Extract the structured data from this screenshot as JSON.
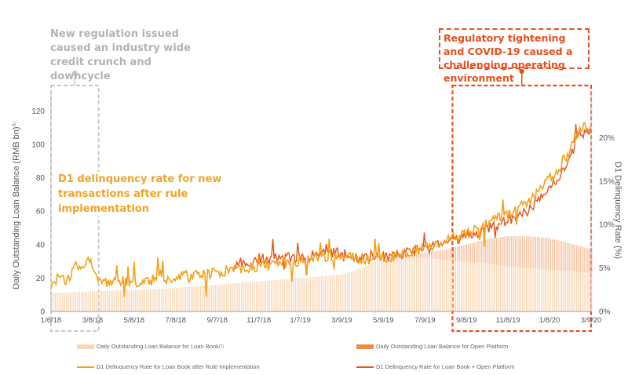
{
  "annotations": {
    "regulation": "New regulation issued caused an industry wide credit crunch and downcycle",
    "covid": "Regulatory tightening and COVID-19 caused a challenging operating environment",
    "d1_note": "D1 delinquency rate for new transactions after rule implementation"
  },
  "colors": {
    "loan_book_bar": "#f9d8b7",
    "open_platform_bar": "#f08a48",
    "d1_after_rule": "#f6a01a",
    "d1_combined": "#e5541c",
    "highlight_gray": "#c8c8c8",
    "highlight_red": "#e8501f"
  },
  "chart_data": {
    "type": "bar-line-combo",
    "title": "",
    "y_left_label": "Daily Outstanding Loan Balance (RMB bn)",
    "y_left_label_sup": "(1)",
    "y_right_label": "D1 Delinquency Rate (%)",
    "y_left_range": [
      0,
      130
    ],
    "y_left_ticks": [
      "0",
      "20",
      "40",
      "60",
      "80",
      "100",
      "120"
    ],
    "y_right_range": [
      0,
      0.25
    ],
    "y_right_ticks": [
      "0%",
      "5%",
      "10%",
      "15%",
      "20%"
    ],
    "x_tick_labels": [
      "1/6/18",
      "3/8/18",
      "5/8/18",
      "7/8/18",
      "9/7/18",
      "11/7/18",
      "1/7/19",
      "3/9/19",
      "5/9/19",
      "7/9/19",
      "9/8/19",
      "11/8/19",
      "1/8/20",
      "3/9/20"
    ],
    "x_range_months": [
      0,
      26.1
    ],
    "series": [
      {
        "name": "Daily Outstanding Loan Balance for Loan Book",
        "name_sup": "(1)",
        "type": "bar",
        "axis": "left",
        "points": [
          [
            0,
            11
          ],
          [
            2,
            12
          ],
          [
            4,
            13
          ],
          [
            6,
            14
          ],
          [
            8,
            16
          ],
          [
            10,
            18
          ],
          [
            12,
            20
          ],
          [
            13,
            21
          ],
          [
            14,
            22
          ],
          [
            15,
            26
          ],
          [
            16,
            31
          ],
          [
            17,
            32
          ],
          [
            18,
            32
          ],
          [
            19,
            31
          ],
          [
            20,
            30
          ],
          [
            21,
            29
          ],
          [
            22,
            27
          ],
          [
            23,
            26
          ],
          [
            24,
            25
          ],
          [
            25,
            24
          ],
          [
            26.1,
            23
          ]
        ]
      },
      {
        "name": "Daily Outstanding Loan Balance for Open Platform",
        "type": "bar",
        "axis": "left",
        "stacked_on": "Daily Outstanding Loan Balance for Loan Book",
        "points": [
          [
            0,
            0
          ],
          [
            15,
            0
          ],
          [
            16,
            0.5
          ],
          [
            17,
            1
          ],
          [
            18,
            3
          ],
          [
            19,
            6
          ],
          [
            20,
            10
          ],
          [
            21,
            14
          ],
          [
            22,
            18
          ],
          [
            23,
            19
          ],
          [
            24,
            19
          ],
          [
            25,
            17
          ],
          [
            26.1,
            14
          ]
        ]
      },
      {
        "name": "D1 Delinquency Rate for Loan Book after Rule Implementation",
        "type": "line",
        "axis": "right",
        "points": [
          [
            0,
            0.032
          ],
          [
            0.3,
            0.038
          ],
          [
            0.8,
            0.034
          ],
          [
            1.2,
            0.055
          ],
          [
            1.5,
            0.048
          ],
          [
            1.8,
            0.068
          ],
          [
            2.1,
            0.045
          ],
          [
            2.5,
            0.031
          ],
          [
            3,
            0.033
          ],
          [
            3.6,
            0.035
          ],
          [
            4.2,
            0.032
          ],
          [
            4.8,
            0.034
          ],
          [
            5.2,
            0.045
          ],
          [
            5.8,
            0.034
          ],
          [
            6.2,
            0.04
          ],
          [
            7,
            0.041
          ],
          [
            7.6,
            0.042
          ],
          [
            8,
            0.045
          ],
          [
            8.6,
            0.048
          ],
          [
            9.2,
            0.05
          ],
          [
            10,
            0.052
          ],
          [
            11,
            0.055
          ],
          [
            12,
            0.058
          ],
          [
            13,
            0.063
          ],
          [
            14,
            0.064
          ],
          [
            15,
            0.06
          ],
          [
            16,
            0.062
          ],
          [
            17,
            0.065
          ],
          [
            18,
            0.073
          ],
          [
            19,
            0.08
          ],
          [
            20,
            0.09
          ],
          [
            21,
            0.1
          ],
          [
            22,
            0.111
          ],
          [
            23,
            0.125
          ],
          [
            24,
            0.15
          ],
          [
            25,
            0.18
          ],
          [
            25.5,
            0.21
          ],
          [
            26.1,
            0.212
          ]
        ]
      },
      {
        "name": "D1 Delinquency Rate for Loan Book + Open Platform",
        "type": "line",
        "axis": "right",
        "points": [
          [
            8.8,
            0.055
          ],
          [
            9.5,
            0.057
          ],
          [
            10,
            0.06
          ],
          [
            11,
            0.061
          ],
          [
            12,
            0.063
          ],
          [
            13,
            0.066
          ],
          [
            14,
            0.068
          ],
          [
            15,
            0.061
          ],
          [
            16,
            0.062
          ],
          [
            17,
            0.067
          ],
          [
            18,
            0.072
          ],
          [
            19,
            0.078
          ],
          [
            20,
            0.086
          ],
          [
            21,
            0.094
          ],
          [
            22,
            0.104
          ],
          [
            23,
            0.114
          ],
          [
            24,
            0.14
          ],
          [
            25,
            0.17
          ],
          [
            25.5,
            0.203
          ],
          [
            26.1,
            0.208
          ]
        ]
      }
    ],
    "highlights": [
      {
        "label": "regulation window",
        "x_range_months": [
          0,
          2.3
        ],
        "style": "dashed-gray"
      },
      {
        "label": "covid window",
        "x_range_months": [
          19.4,
          26.1
        ],
        "style": "dashed-red"
      }
    ]
  }
}
